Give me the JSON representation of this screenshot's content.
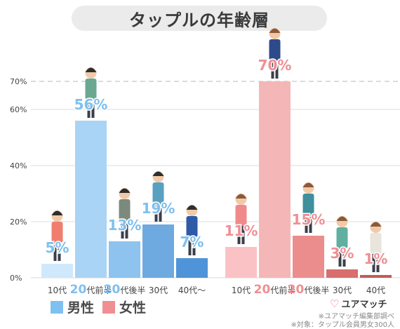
{
  "title": "タップルの年齢層",
  "chart_data": {
    "type": "bar",
    "ylim": [
      0,
      75
    ],
    "y_ticks": [
      "0%",
      "20%",
      "40%",
      "60%",
      "70%"
    ],
    "reference_line": 70,
    "groups": [
      {
        "name": "男性",
        "color": "#9fcff2",
        "categories": [
          "10代",
          "20代前半",
          "20代後半",
          "30代",
          "40代〜"
        ],
        "values": [
          5,
          56,
          13,
          19,
          7
        ],
        "labels": [
          "5%",
          "56%",
          "13%",
          "19%",
          "7%"
        ],
        "bar_colors": [
          "#cfe8fb",
          "#a9d4f5",
          "#8dc3ee",
          "#6ea9e0",
          "#4f94d8"
        ]
      },
      {
        "name": "女性",
        "color": "#ef9c9c",
        "categories": [
          "10代",
          "20代前半",
          "20代後半",
          "30代",
          "40代"
        ],
        "values": [
          11,
          70,
          15,
          3,
          1
        ],
        "labels": [
          "11%",
          "70%",
          "15%",
          "3%",
          "1%"
        ],
        "bar_colors": [
          "#fbc2c6",
          "#f5b6b8",
          "#eb8d8d",
          "#d96e6e",
          "#c45a5a"
        ]
      }
    ]
  },
  "legend": {
    "male": "男性",
    "female": "女性"
  },
  "colors": {
    "male": "#7ec0ef",
    "female": "#ef8f94"
  },
  "brand": {
    "name": "ユアマッチ",
    "icon": "heart-icon"
  },
  "source": {
    "line1": "※ユアマッチ編集部調べ",
    "line2": "※対象：タップル会員男女300人"
  }
}
